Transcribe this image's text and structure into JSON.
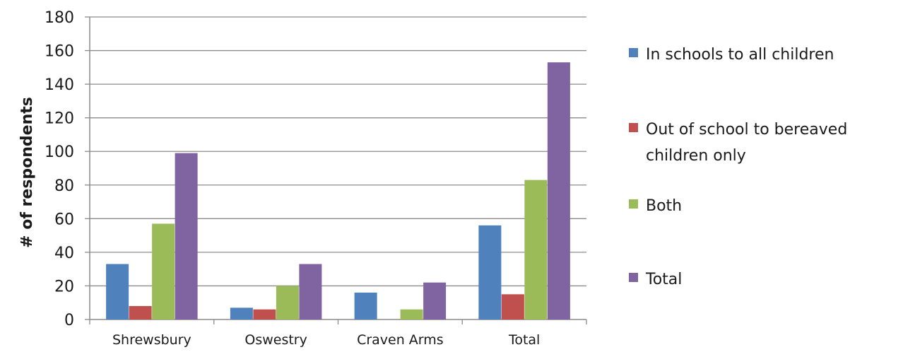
{
  "chart_data": {
    "type": "bar",
    "title": "",
    "xlabel": "",
    "ylabel": "# of respondents",
    "ylim": [
      0,
      180
    ],
    "yticks": [
      0,
      20,
      40,
      60,
      80,
      100,
      120,
      140,
      160,
      180
    ],
    "grid": true,
    "legend_position": "right",
    "categories": [
      "Shrewsbury",
      "Oswestry",
      "Craven Arms",
      "Total"
    ],
    "series": [
      {
        "name": "In schools to all children",
        "color": "#4f81bd",
        "values": [
          33,
          7,
          16,
          56
        ]
      },
      {
        "name": "Out of school to bereaved children only",
        "color": "#c0504d",
        "values": [
          8,
          6,
          0,
          15
        ]
      },
      {
        "name": "Both",
        "color": "#9bbb59",
        "values": [
          57,
          20,
          6,
          83
        ]
      },
      {
        "name": "Total",
        "color": "#8064a2",
        "values": [
          99,
          33,
          22,
          153
        ]
      }
    ],
    "legend_lines": [
      [
        "In schools to all children"
      ],
      [
        "Out of school to bereaved",
        "children only"
      ],
      [
        "Both"
      ],
      [
        "Total"
      ]
    ]
  }
}
